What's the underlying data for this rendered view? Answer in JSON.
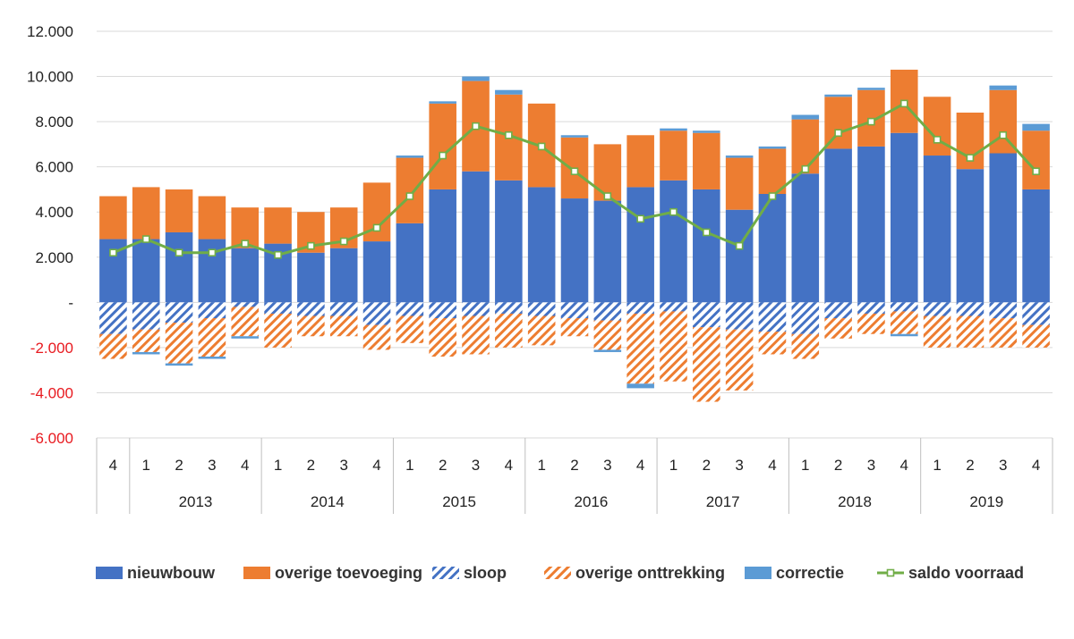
{
  "chart_data": {
    "type": "bar",
    "subtype": "stacked-bar-with-line",
    "title": "",
    "xlabel": "",
    "ylabel": "",
    "ylim": [
      -6000,
      12000
    ],
    "y_ticks": [
      {
        "value": 12000,
        "label": "12.000",
        "color": "#222222"
      },
      {
        "value": 10000,
        "label": "10.000",
        "color": "#222222"
      },
      {
        "value": 8000,
        "label": "8.000",
        "color": "#222222"
      },
      {
        "value": 6000,
        "label": "6.000",
        "color": "#222222"
      },
      {
        "value": 4000,
        "label": "4.000",
        "color": "#222222"
      },
      {
        "value": 2000,
        "label": "2.000",
        "color": "#222222"
      },
      {
        "value": 0,
        "label": "-",
        "color": "#222222"
      },
      {
        "value": -2000,
        "label": "-2.000",
        "color": "#e8191f"
      },
      {
        "value": -4000,
        "label": "-4.000",
        "color": "#e8191f"
      },
      {
        "value": -6000,
        "label": "-6.000",
        "color": "#e8191f"
      }
    ],
    "grid": true,
    "legend_position": "bottom",
    "quarters": [
      "4",
      "1",
      "2",
      "3",
      "4",
      "1",
      "2",
      "3",
      "4",
      "1",
      "2",
      "3",
      "4",
      "1",
      "2",
      "3",
      "4",
      "1",
      "2",
      "3",
      "4",
      "1",
      "2",
      "3",
      "4",
      "1",
      "2",
      "3",
      "4"
    ],
    "years": [
      {
        "label": "2013",
        "start": 1,
        "end": 4
      },
      {
        "label": "2014",
        "start": 5,
        "end": 8
      },
      {
        "label": "2015",
        "start": 9,
        "end": 12
      },
      {
        "label": "2016",
        "start": 13,
        "end": 16
      },
      {
        "label": "2017",
        "start": 17,
        "end": 20
      },
      {
        "label": "2018",
        "start": 21,
        "end": 24
      },
      {
        "label": "2019",
        "start": 25,
        "end": 28
      }
    ],
    "series": [
      {
        "name": "nieuwbouw",
        "style": "solid",
        "color": "#4472c4",
        "stack": "positive",
        "values": [
          2800,
          2800,
          3100,
          2800,
          2400,
          2600,
          2200,
          2400,
          2700,
          3500,
          5000,
          5800,
          5400,
          5100,
          4600,
          4500,
          5100,
          5400,
          5000,
          4100,
          4800,
          5700,
          6800,
          6900,
          7500,
          6500,
          5900,
          6600,
          5000
        ]
      },
      {
        "name": "overige toevoeging",
        "style": "solid",
        "color": "#ed7d31",
        "stack": "positive",
        "values": [
          1900,
          2300,
          1900,
          1900,
          1800,
          1600,
          1800,
          1800,
          2600,
          2900,
          3800,
          4000,
          3800,
          3700,
          2700,
          2500,
          2300,
          2200,
          2500,
          2300,
          2000,
          2400,
          2300,
          2500,
          2800,
          2600,
          2500,
          2800,
          2600
        ]
      },
      {
        "name": "sloop",
        "style": "hatch",
        "color": "#4472c4",
        "stack": "negative",
        "values": [
          -1400,
          -1200,
          -900,
          -700,
          -200,
          -500,
          -600,
          -600,
          -1000,
          -600,
          -700,
          -600,
          -500,
          -600,
          -700,
          -800,
          -500,
          -400,
          -1100,
          -1200,
          -1300,
          -1400,
          -700,
          -500,
          -400,
          -600,
          -600,
          -700,
          -1000
        ]
      },
      {
        "name": "overige onttrekking",
        "style": "hatch",
        "color": "#ed7d31",
        "stack": "negative",
        "values": [
          -1100,
          -1000,
          -1800,
          -1700,
          -1300,
          -1500,
          -900,
          -900,
          -1100,
          -1200,
          -1700,
          -1700,
          -1500,
          -1300,
          -800,
          -1300,
          -3100,
          -3100,
          -3300,
          -2700,
          -1000,
          -1100,
          -900,
          -900,
          -1000,
          -1400,
          -1400,
          -1300,
          -1000
        ]
      },
      {
        "name": "correctie",
        "style": "solid",
        "color": "#5b9bd5",
        "stack": "mixed",
        "values": [
          0,
          -100,
          -100,
          -100,
          -100,
          0,
          0,
          0,
          0,
          100,
          100,
          200,
          200,
          0,
          100,
          -100,
          -200,
          100,
          100,
          100,
          100,
          200,
          100,
          100,
          -100,
          0,
          0,
          200,
          300
        ]
      },
      {
        "name": "saldo voorraad",
        "style": "line",
        "color": "#70ad47",
        "values": [
          2200,
          2800,
          2200,
          2200,
          2600,
          2100,
          2500,
          2700,
          3300,
          4700,
          6500,
          7800,
          7400,
          6900,
          5800,
          4700,
          3700,
          4000,
          3100,
          2500,
          4700,
          5900,
          7500,
          8000,
          8800,
          7200,
          6400,
          7400,
          5800
        ]
      }
    ]
  }
}
